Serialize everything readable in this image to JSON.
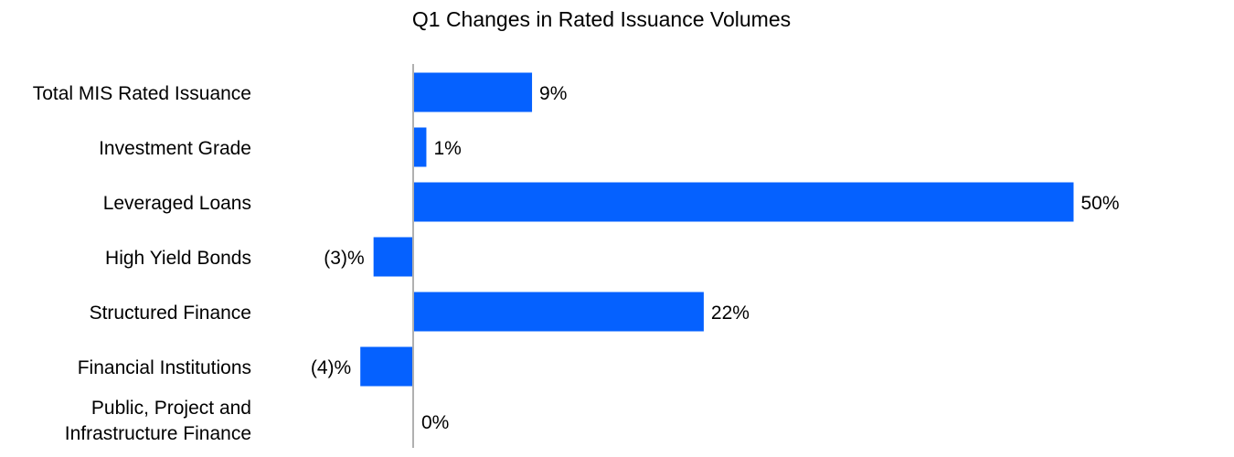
{
  "chart_data": {
    "type": "bar",
    "orientation": "horizontal",
    "title": "Q1 Changes in Rated Issuance Volumes",
    "categories": [
      "Total MIS Rated Issuance",
      "Investment Grade",
      "Leveraged Loans",
      "High Yield Bonds",
      "Structured Finance",
      "Financial Institutions",
      "Public, Project and Infrastructure Finance"
    ],
    "values": [
      9,
      1,
      50,
      -3,
      22,
      -4,
      0
    ],
    "data_labels": [
      "9%",
      "1%",
      "50%",
      "(3)%",
      "22%",
      "(4)%",
      "0%"
    ],
    "xlabel": "",
    "ylabel": "",
    "unit": "%",
    "bar_color": "#0561ff",
    "zero_line_color": "#b0b0b0",
    "grid": false,
    "legend": "none"
  }
}
